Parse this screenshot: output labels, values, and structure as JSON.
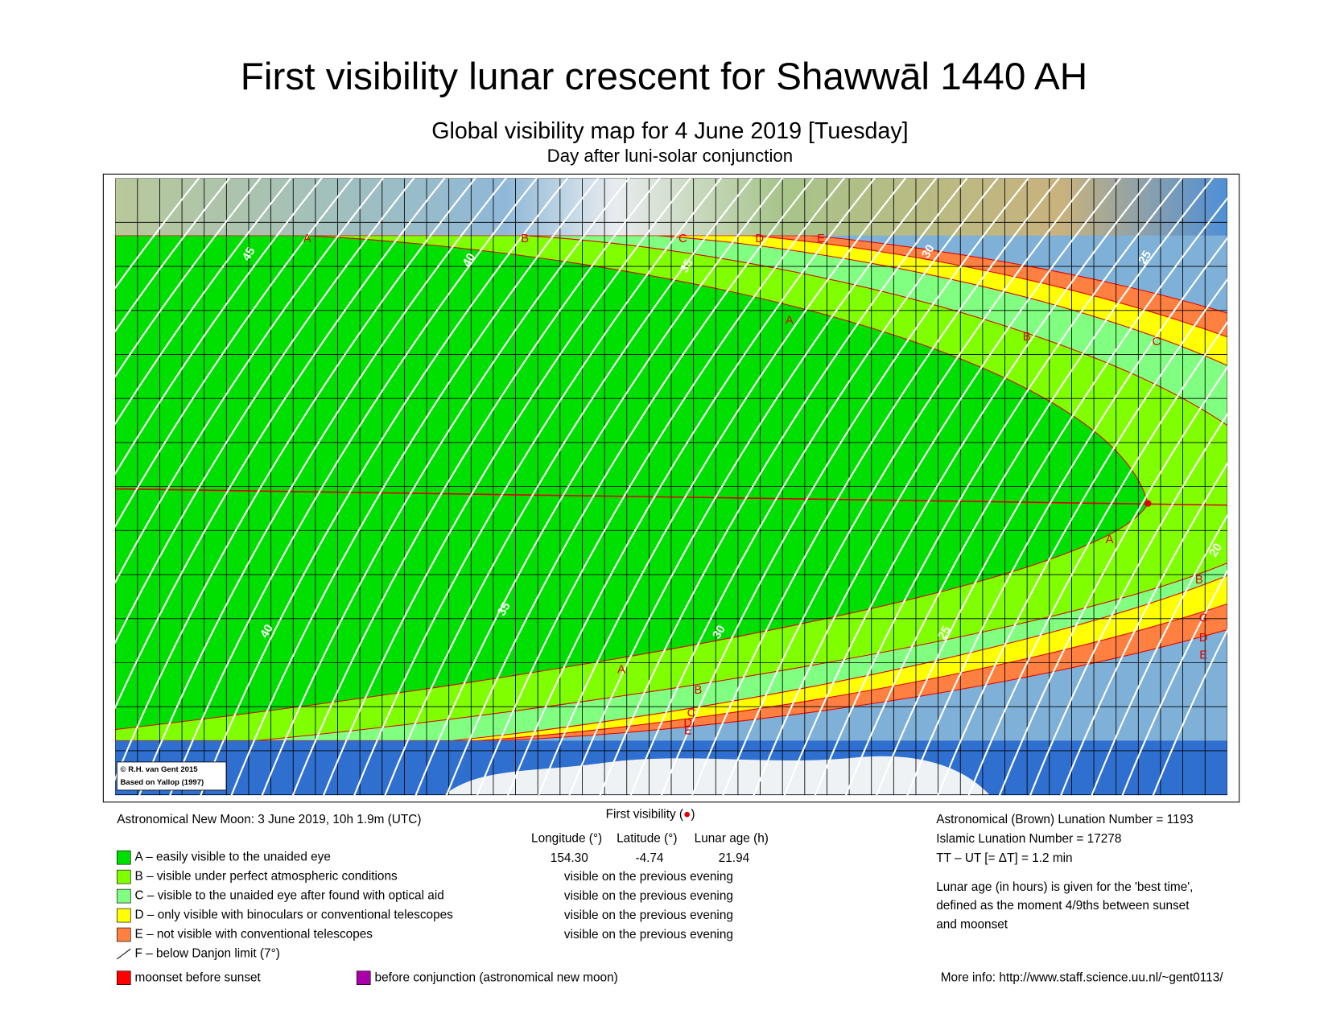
{
  "header": {
    "title": "First visibility lunar crescent for Shawwāl 1440 AH",
    "subtitle": "Global visibility map for 4 June 2019 [Tuesday]",
    "subtitle_2": "Day after luni-solar conjunction"
  },
  "map": {
    "zone_labels": [
      "A",
      "B",
      "C",
      "D",
      "E",
      "A",
      "B",
      "C",
      "A",
      "B",
      "C",
      "D",
      "E",
      "A",
      "B",
      "C",
      "D",
      "E"
    ],
    "contour_labels": [
      "45",
      "40",
      "35",
      "30",
      "25",
      "20",
      "40",
      "35",
      "30",
      "25"
    ],
    "credit": [
      "© R.H. van Gent 2015",
      "Based on Yallop (1997)"
    ]
  },
  "new_moon": "Astronomical New Moon: 3 June 2019, 10h 1.9m (UTC)",
  "legend": [
    {
      "label": "A – easily visible to the unaided eye",
      "color": "#00e000"
    },
    {
      "label": "B – visible under perfect atmospheric conditions",
      "color": "#80ff00"
    },
    {
      "label": "C – visible to the unaided eye after found with optical aid",
      "color": "#80ff80"
    },
    {
      "label": "D – only visible with binoculars or conventional telescopes",
      "color": "#ffff00"
    },
    {
      "label": "E – not visible with conventional telescopes",
      "color": "#ff8040"
    },
    {
      "label": "F – below Danjon limit (7°)",
      "color": "#ffffff"
    }
  ],
  "extra_legend": [
    {
      "label": "moonset before sunset",
      "color": "#ff0000"
    },
    {
      "label": "before conjunction (astronomical new moon)",
      "color": "#aa00aa"
    }
  ],
  "first_visibility": {
    "title": [
      "First visibility (",
      "●",
      ")"
    ],
    "columns": [
      "Longitude (°)",
      "Latitude (°)",
      "Lunar age (h)"
    ],
    "values": [
      "154.30",
      "-4.74",
      "21.94"
    ],
    "rows": [
      "visible on the previous evening",
      "visible on the previous evening",
      "visible on the previous evening",
      "visible on the previous evening"
    ]
  },
  "lunation": [
    "Astronomical (Brown) Lunation Number = 1193",
    "Islamic Lunation Number = 17278",
    "TT – UT [= ΔT] = 1.2 min"
  ],
  "note": [
    "Lunar age (in hours) is given for the 'best time',",
    "defined as the moment 4/9ths between sunset",
    "and moonset"
  ],
  "more_info": "More info: http://www.staff.science.uu.nl/~gent0113/"
}
